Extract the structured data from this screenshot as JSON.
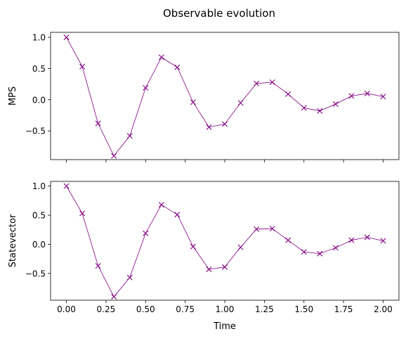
{
  "chart_data": {
    "title": "Observable evolution",
    "type": "line",
    "color": "#800080",
    "marker": "x",
    "x": [
      0.0,
      0.1,
      0.2,
      0.3,
      0.4,
      0.5,
      0.6,
      0.7,
      0.8,
      0.9,
      1.0,
      1.1,
      1.2,
      1.3,
      1.4,
      1.5,
      1.6,
      1.7,
      1.8,
      1.9,
      2.0
    ],
    "xlabel": "Time",
    "xlim": [
      -0.1,
      2.1
    ],
    "xticks": [
      0.0,
      0.25,
      0.5,
      0.75,
      1.0,
      1.25,
      1.5,
      1.75,
      2.0
    ],
    "xtick_labels": [
      "0.00",
      "0.25",
      "0.50",
      "0.75",
      "1.00",
      "1.25",
      "1.50",
      "1.75",
      "2.00"
    ],
    "subplots": [
      {
        "ylabel": "MPS",
        "ylim": [
          -0.96,
          1.08
        ],
        "yticks": [
          -0.5,
          0.0,
          0.5,
          1.0
        ],
        "ytick_labels": [
          "−0.5",
          "0.0",
          "0.5",
          "1.0"
        ],
        "show_xtick_labels": false,
        "values": [
          1.0,
          0.53,
          -0.38,
          -0.9,
          -0.58,
          0.19,
          0.68,
          0.52,
          -0.04,
          -0.44,
          -0.39,
          -0.05,
          0.26,
          0.28,
          0.09,
          -0.13,
          -0.18,
          -0.07,
          0.06,
          0.1,
          0.05
        ]
      },
      {
        "ylabel": "Statevector",
        "ylim": [
          -0.96,
          1.08
        ],
        "yticks": [
          -0.5,
          0.0,
          0.5,
          1.0
        ],
        "ytick_labels": [
          "−0.5",
          "0.0",
          "0.5",
          "1.0"
        ],
        "show_xtick_labels": true,
        "values": [
          1.0,
          0.53,
          -0.37,
          -0.9,
          -0.57,
          0.19,
          0.68,
          0.51,
          -0.04,
          -0.43,
          -0.39,
          -0.05,
          0.26,
          0.27,
          0.07,
          -0.13,
          -0.16,
          -0.06,
          0.07,
          0.12,
          0.06
        ]
      }
    ]
  }
}
